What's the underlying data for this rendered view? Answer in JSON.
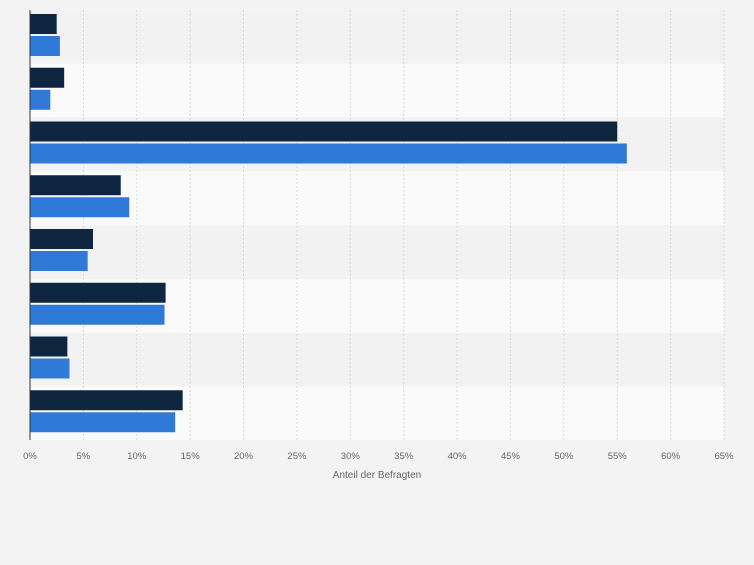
{
  "chart_data": {
    "type": "bar",
    "orientation": "horizontal",
    "categories": [
      "",
      "",
      "",
      "",
      "",
      "",
      "",
      ""
    ],
    "series": [
      {
        "color": "#0f2640",
        "values": [
          2.5,
          3.2,
          55.0,
          8.5,
          5.9,
          12.7,
          3.5,
          14.3
        ]
      },
      {
        "color": "#2f7ad9",
        "values": [
          2.8,
          1.9,
          55.9,
          9.3,
          5.4,
          12.6,
          3.7,
          13.6
        ]
      }
    ],
    "xlabel": "Anteil der Befragten",
    "xlim": [
      0,
      65
    ],
    "xticks": [
      "0%",
      "5%",
      "10%",
      "15%",
      "20%",
      "25%",
      "30%",
      "35%",
      "40%",
      "45%",
      "50%",
      "55%",
      "60%",
      "65%"
    ],
    "grid": true,
    "legend": "none"
  }
}
